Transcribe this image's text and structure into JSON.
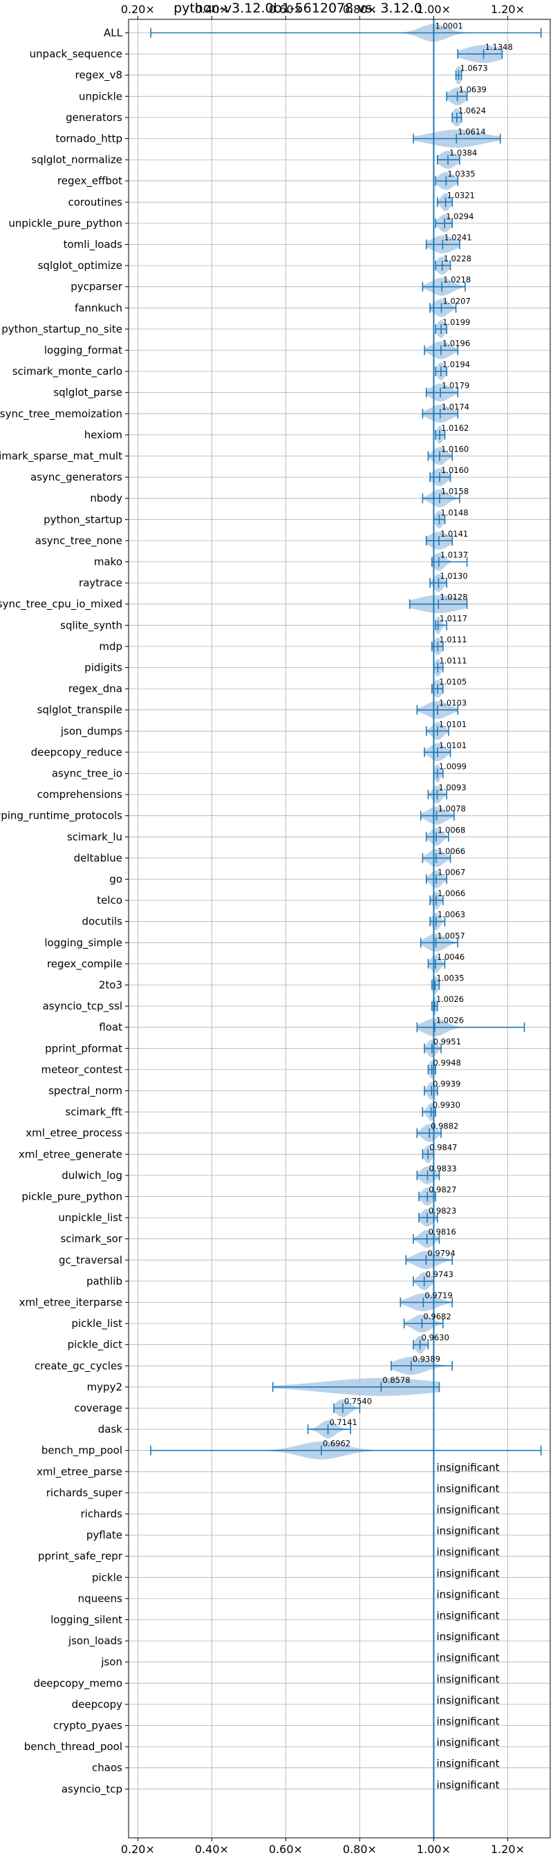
{
  "chart_data": {
    "type": "violin",
    "title": "python-v3.12.0b1-5612078 vs. 3.12.0",
    "x_ticks": [
      "0.20×",
      "0.40×",
      "0.60×",
      "0.80×",
      "1.00×",
      "1.20×"
    ],
    "x_tick_values": [
      0.2,
      0.4,
      0.6,
      0.8,
      1.0,
      1.2
    ],
    "xlim": [
      0.175,
      1.315
    ],
    "grid": true,
    "reference_line": 1.0,
    "colors": {
      "line": "#1f77b4",
      "violin": "#aecbe6"
    },
    "insignificant_label": "insignificant",
    "benchmarks": [
      {
        "name": "ALL",
        "label": "1.0001",
        "mean": 1.0001,
        "min": 0.235,
        "max": 1.29,
        "spread": 0.035
      },
      {
        "name": "unpack_sequence",
        "label": "1.1348",
        "mean": 1.1348,
        "min": 1.065,
        "max": 1.185,
        "spread": 0.05
      },
      {
        "name": "regex_v8",
        "label": "1.0673",
        "mean": 1.0673,
        "min": 1.06,
        "max": 1.075,
        "spread": 0.01
      },
      {
        "name": "unpickle",
        "label": "1.0639",
        "mean": 1.0639,
        "min": 1.035,
        "max": 1.09,
        "spread": 0.02
      },
      {
        "name": "generators",
        "label": "1.0624",
        "mean": 1.0624,
        "min": 1.05,
        "max": 1.075,
        "spread": 0.012
      },
      {
        "name": "tornado_http",
        "label": "1.0614",
        "mean": 1.0614,
        "min": 0.945,
        "max": 1.18,
        "spread": 0.07
      },
      {
        "name": "sqlglot_normalize",
        "label": "1.0384",
        "mean": 1.0384,
        "min": 1.01,
        "max": 1.07,
        "spread": 0.022
      },
      {
        "name": "regex_effbot",
        "label": "1.0335",
        "mean": 1.0335,
        "min": 1.005,
        "max": 1.065,
        "spread": 0.02
      },
      {
        "name": "coroutines",
        "label": "1.0321",
        "mean": 1.0321,
        "min": 1.01,
        "max": 1.05,
        "spread": 0.012
      },
      {
        "name": "unpickle_pure_python",
        "label": "1.0294",
        "mean": 1.0294,
        "min": 1.005,
        "max": 1.05,
        "spread": 0.015
      },
      {
        "name": "tomli_loads",
        "label": "1.0241",
        "mean": 1.0241,
        "min": 0.98,
        "max": 1.07,
        "spread": 0.03
      },
      {
        "name": "sqlglot_optimize",
        "label": "1.0228",
        "mean": 1.0228,
        "min": 1.005,
        "max": 1.045,
        "spread": 0.015
      },
      {
        "name": "pycparser",
        "label": "1.0218",
        "mean": 1.0218,
        "min": 0.97,
        "max": 1.085,
        "spread": 0.028
      },
      {
        "name": "fannkuch",
        "label": "1.0207",
        "mean": 1.0207,
        "min": 0.99,
        "max": 1.06,
        "spread": 0.02
      },
      {
        "name": "python_startup_no_site",
        "label": "1.0199",
        "mean": 1.0199,
        "min": 1.005,
        "max": 1.035,
        "spread": 0.01
      },
      {
        "name": "logging_format",
        "label": "1.0196",
        "mean": 1.0196,
        "min": 0.975,
        "max": 1.065,
        "spread": 0.025
      },
      {
        "name": "scimark_monte_carlo",
        "label": "1.0194",
        "mean": 1.0194,
        "min": 1.005,
        "max": 1.035,
        "spread": 0.01
      },
      {
        "name": "sqlglot_parse",
        "label": "1.0179",
        "mean": 1.0179,
        "min": 0.98,
        "max": 1.065,
        "spread": 0.025
      },
      {
        "name": "async_tree_memoization",
        "label": "1.0174",
        "mean": 1.0174,
        "min": 0.97,
        "max": 1.065,
        "spread": 0.028
      },
      {
        "name": "hexiom",
        "label": "1.0162",
        "mean": 1.0162,
        "min": 1.005,
        "max": 1.03,
        "spread": 0.008
      },
      {
        "name": "scimark_sparse_mat_mult",
        "label": "1.0160",
        "mean": 1.016,
        "min": 0.985,
        "max": 1.05,
        "spread": 0.018
      },
      {
        "name": "async_generators",
        "label": "1.0160",
        "mean": 1.016,
        "min": 0.99,
        "max": 1.045,
        "spread": 0.018
      },
      {
        "name": "nbody",
        "label": "1.0158",
        "mean": 1.0158,
        "min": 0.97,
        "max": 1.07,
        "spread": 0.022
      },
      {
        "name": "python_startup",
        "label": "1.0148",
        "mean": 1.0148,
        "min": 1.0,
        "max": 1.03,
        "spread": 0.01
      },
      {
        "name": "async_tree_none",
        "label": "1.0141",
        "mean": 1.0141,
        "min": 0.98,
        "max": 1.05,
        "spread": 0.025
      },
      {
        "name": "mako",
        "label": "1.0137",
        "mean": 1.0137,
        "min": 0.995,
        "max": 1.09,
        "spread": 0.015
      },
      {
        "name": "raytrace",
        "label": "1.0130",
        "mean": 1.013,
        "min": 0.99,
        "max": 1.035,
        "spread": 0.012
      },
      {
        "name": "async_tree_cpu_io_mixed",
        "label": "1.0128",
        "mean": 1.0128,
        "min": 0.935,
        "max": 1.09,
        "spread": 0.06
      },
      {
        "name": "sqlite_synth",
        "label": "1.0117",
        "mean": 1.0117,
        "min": 1.005,
        "max": 1.035,
        "spread": 0.008
      },
      {
        "name": "mdp",
        "label": "1.0111",
        "mean": 1.0111,
        "min": 0.995,
        "max": 1.025,
        "spread": 0.01
      },
      {
        "name": "pidigits",
        "label": "1.0111",
        "mean": 1.0111,
        "min": 1.0,
        "max": 1.025,
        "spread": 0.008
      },
      {
        "name": "regex_dna",
        "label": "1.0105",
        "mean": 1.0105,
        "min": 0.995,
        "max": 1.025,
        "spread": 0.012
      },
      {
        "name": "sqlglot_transpile",
        "label": "1.0103",
        "mean": 1.0103,
        "min": 0.955,
        "max": 1.065,
        "spread": 0.03
      },
      {
        "name": "json_dumps",
        "label": "1.0101",
        "mean": 1.0101,
        "min": 0.98,
        "max": 1.04,
        "spread": 0.015
      },
      {
        "name": "deepcopy_reduce",
        "label": "1.0101",
        "mean": 1.0101,
        "min": 0.975,
        "max": 1.045,
        "spread": 0.02
      },
      {
        "name": "async_tree_io",
        "label": "1.0099",
        "mean": 1.0099,
        "min": 1.0,
        "max": 1.025,
        "spread": 0.008
      },
      {
        "name": "comprehensions",
        "label": "1.0093",
        "mean": 1.0093,
        "min": 0.985,
        "max": 1.035,
        "spread": 0.012
      },
      {
        "name": "typing_runtime_protocols",
        "label": "1.0078",
        "mean": 1.0078,
        "min": 0.965,
        "max": 1.055,
        "spread": 0.025
      },
      {
        "name": "scimark_lu",
        "label": "1.0068",
        "mean": 1.0068,
        "min": 0.98,
        "max": 1.04,
        "spread": 0.015
      },
      {
        "name": "deltablue",
        "label": "1.0066",
        "mean": 1.0066,
        "min": 0.97,
        "max": 1.045,
        "spread": 0.02
      },
      {
        "name": "go",
        "label": "1.0067",
        "mean": 1.0067,
        "min": 0.98,
        "max": 1.035,
        "spread": 0.015
      },
      {
        "name": "telco",
        "label": "1.0066",
        "mean": 1.0066,
        "min": 0.99,
        "max": 1.025,
        "spread": 0.01
      },
      {
        "name": "docutils",
        "label": "1.0063",
        "mean": 1.0063,
        "min": 0.99,
        "max": 1.03,
        "spread": 0.01
      },
      {
        "name": "logging_simple",
        "label": "1.0057",
        "mean": 1.0057,
        "min": 0.965,
        "max": 1.065,
        "spread": 0.025
      },
      {
        "name": "regex_compile",
        "label": "1.0046",
        "mean": 1.0046,
        "min": 0.985,
        "max": 1.03,
        "spread": 0.012
      },
      {
        "name": "2to3",
        "label": "1.0035",
        "mean": 1.0035,
        "min": 0.995,
        "max": 1.015,
        "spread": 0.008
      },
      {
        "name": "asyncio_tcp_ssl",
        "label": "1.0026",
        "mean": 1.0026,
        "min": 0.995,
        "max": 1.01,
        "spread": 0.006
      },
      {
        "name": "float",
        "label": "1.0026",
        "mean": 1.0026,
        "min": 0.955,
        "max": 1.245,
        "spread": 0.03
      },
      {
        "name": "pprint_pformat",
        "label": "0.9951",
        "mean": 0.9951,
        "min": 0.975,
        "max": 1.02,
        "spread": 0.012
      },
      {
        "name": "meteor_contest",
        "label": "0.9948",
        "mean": 0.9948,
        "min": 0.985,
        "max": 1.005,
        "spread": 0.008
      },
      {
        "name": "spectral_norm",
        "label": "0.9939",
        "mean": 0.9939,
        "min": 0.975,
        "max": 1.01,
        "spread": 0.01
      },
      {
        "name": "scimark_fft",
        "label": "0.9930",
        "mean": 0.993,
        "min": 0.97,
        "max": 1.005,
        "spread": 0.01
      },
      {
        "name": "xml_etree_process",
        "label": "0.9882",
        "mean": 0.9882,
        "min": 0.955,
        "max": 1.02,
        "spread": 0.018
      },
      {
        "name": "xml_etree_generate",
        "label": "0.9847",
        "mean": 0.9847,
        "min": 0.97,
        "max": 1.0,
        "spread": 0.01
      },
      {
        "name": "dulwich_log",
        "label": "0.9833",
        "mean": 0.9833,
        "min": 0.955,
        "max": 1.015,
        "spread": 0.018
      },
      {
        "name": "pickle_pure_python",
        "label": "0.9827",
        "mean": 0.9827,
        "min": 0.96,
        "max": 1.005,
        "spread": 0.015
      },
      {
        "name": "unpickle_list",
        "label": "0.9823",
        "mean": 0.9823,
        "min": 0.96,
        "max": 1.01,
        "spread": 0.015
      },
      {
        "name": "scimark_sor",
        "label": "0.9816",
        "mean": 0.9816,
        "min": 0.945,
        "max": 1.015,
        "spread": 0.018
      },
      {
        "name": "gc_traversal",
        "label": "0.9794",
        "mean": 0.9794,
        "min": 0.925,
        "max": 1.05,
        "spread": 0.03
      },
      {
        "name": "pathlib",
        "label": "0.9743",
        "mean": 0.9743,
        "min": 0.945,
        "max": 1.0,
        "spread": 0.015
      },
      {
        "name": "xml_etree_iterparse",
        "label": "0.9719",
        "mean": 0.9719,
        "min": 0.91,
        "max": 1.05,
        "spread": 0.035
      },
      {
        "name": "pickle_list",
        "label": "0.9682",
        "mean": 0.9682,
        "min": 0.92,
        "max": 1.025,
        "spread": 0.025
      },
      {
        "name": "pickle_dict",
        "label": "0.9630",
        "mean": 0.963,
        "min": 0.945,
        "max": 0.985,
        "spread": 0.012
      },
      {
        "name": "create_gc_cycles",
        "label": "0.9389",
        "mean": 0.9389,
        "min": 0.885,
        "max": 1.05,
        "spread": 0.04
      },
      {
        "name": "mypy2",
        "label": "0.8578",
        "mean": 0.8578,
        "min": 0.565,
        "max": 1.015,
        "spread": 0.15
      },
      {
        "name": "coverage",
        "label": "0.7540",
        "mean": 0.754,
        "min": 0.73,
        "max": 0.8,
        "spread": 0.018
      },
      {
        "name": "dask",
        "label": "0.7141",
        "mean": 0.7141,
        "min": 0.66,
        "max": 0.775,
        "spread": 0.02
      },
      {
        "name": "bench_mp_pool",
        "label": "0.6962",
        "mean": 0.6962,
        "min": 0.235,
        "max": 1.29,
        "spread": 0.06
      },
      {
        "name": "xml_etree_parse",
        "label": "insignificant"
      },
      {
        "name": "richards_super",
        "label": "insignificant"
      },
      {
        "name": "richards",
        "label": "insignificant"
      },
      {
        "name": "pyflate",
        "label": "insignificant"
      },
      {
        "name": "pprint_safe_repr",
        "label": "insignificant"
      },
      {
        "name": "pickle",
        "label": "insignificant"
      },
      {
        "name": "nqueens",
        "label": "insignificant"
      },
      {
        "name": "logging_silent",
        "label": "insignificant"
      },
      {
        "name": "json_loads",
        "label": "insignificant"
      },
      {
        "name": "json",
        "label": "insignificant"
      },
      {
        "name": "deepcopy_memo",
        "label": "insignificant"
      },
      {
        "name": "deepcopy",
        "label": "insignificant"
      },
      {
        "name": "crypto_pyaes",
        "label": "insignificant"
      },
      {
        "name": "bench_thread_pool",
        "label": "insignificant"
      },
      {
        "name": "chaos",
        "label": "insignificant"
      },
      {
        "name": "asyncio_tcp",
        "label": "insignificant"
      }
    ]
  }
}
